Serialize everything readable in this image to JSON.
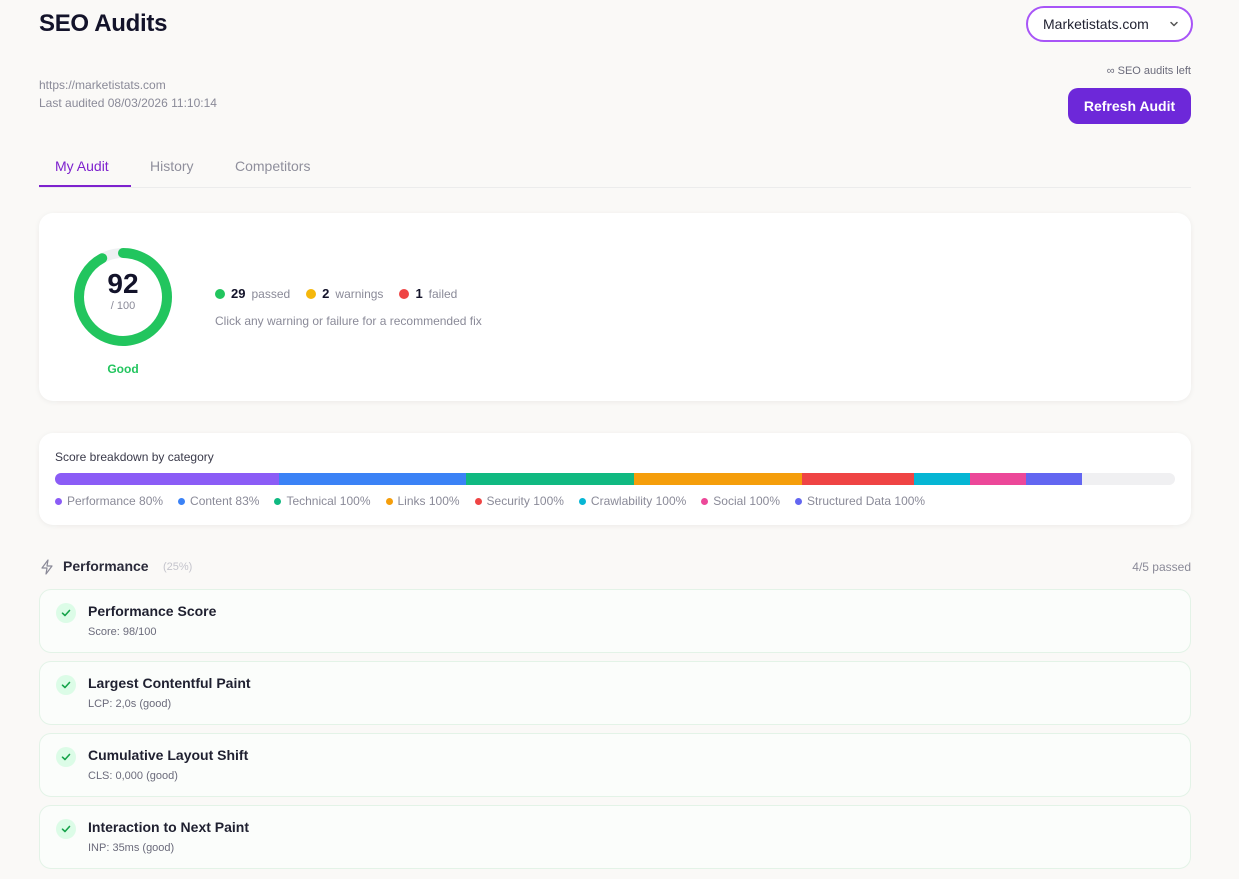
{
  "header": {
    "title": "SEO Audits",
    "site_select": "Marketistats.com",
    "url": "https://marketistats.com",
    "last_audited": "Last audited 08/03/2026 11:10:14",
    "audits_left": "∞ SEO audits left",
    "refresh_label": "Refresh Audit"
  },
  "tabs": [
    {
      "label": "My Audit",
      "active": true
    },
    {
      "label": "History",
      "active": false
    },
    {
      "label": "Competitors",
      "active": false
    }
  ],
  "score": {
    "value": "92",
    "max": "/ 100",
    "rating": "Good",
    "fraction": 0.92,
    "color": "#22c55e"
  },
  "stats": {
    "passed_count": "29",
    "passed_label": "passed",
    "warnings_count": "2",
    "warnings_label": "warnings",
    "failed_count": "1",
    "failed_label": "failed",
    "hint": "Click any warning or failure for a recommended fix"
  },
  "breakdown": {
    "title": "Score breakdown by category",
    "categories": [
      {
        "label": "Performance 80%",
        "color": "#8b5cf6",
        "weight": 20
      },
      {
        "label": "Content 83%",
        "color": "#3b82f6",
        "weight": 16.7
      },
      {
        "label": "Technical 100%",
        "color": "#10b981",
        "weight": 15
      },
      {
        "label": "Links 100%",
        "color": "#f59e0b",
        "weight": 15
      },
      {
        "label": "Security 100%",
        "color": "#ef4444",
        "weight": 10
      },
      {
        "label": "Crawlability 100%",
        "color": "#06b6d4",
        "weight": 5
      },
      {
        "label": "Social 100%",
        "color": "#ec4899",
        "weight": 5
      },
      {
        "label": "Structured Data 100%",
        "color": "#6366f1",
        "weight": 5
      }
    ]
  },
  "performance_section": {
    "title": "Performance",
    "weight_label": "(25%)",
    "passed_label": "4/5 passed",
    "items": [
      {
        "title": "Performance Score",
        "detail": "Score: 98/100"
      },
      {
        "title": "Largest Contentful Paint",
        "detail": "LCP: 2,0s (good)"
      },
      {
        "title": "Cumulative Layout Shift",
        "detail": "CLS: 0,000 (good)"
      },
      {
        "title": "Interaction to Next Paint",
        "detail": "INP: 35ms (good)"
      }
    ]
  }
}
